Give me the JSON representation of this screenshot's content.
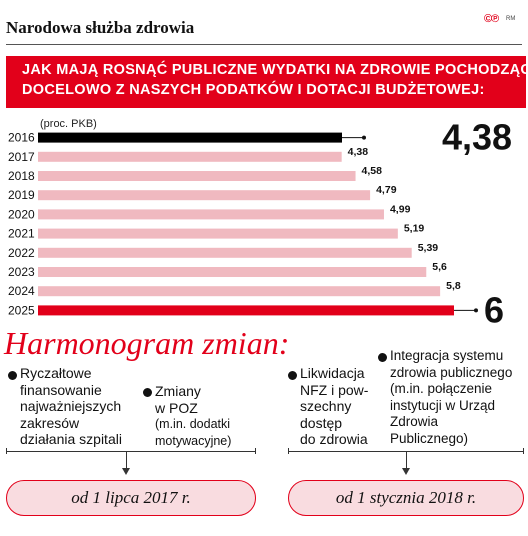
{
  "header": {
    "title": "Narodowa służba zdrowia",
    "logo": "©℗",
    "credit": "RM"
  },
  "banner": {
    "line1": "JAK MAJĄ ROSNĄĆ PUBLICZNE WYDATKI NA ZDROWIE POCHODZĄCE",
    "line2": "DOCELOWO Z NASZYCH PODATKÓW I DOTACJI BUDŻETOWEJ:"
  },
  "unit_label": "(proc. PKB)",
  "chart_data": {
    "type": "bar",
    "orientation": "horizontal",
    "categories": [
      "2016",
      "2017",
      "2018",
      "2019",
      "2020",
      "2021",
      "2022",
      "2023",
      "2024",
      "2025"
    ],
    "values": [
      4.38,
      4.38,
      4.58,
      4.79,
      4.99,
      5.19,
      5.39,
      5.6,
      5.8,
      6
    ],
    "value_labels": [
      "4,38",
      "4,38",
      "4,58",
      "4,79",
      "4,99",
      "5,19",
      "5,39",
      "5,6",
      "5,8",
      "6"
    ],
    "highlight": {
      "first": "4,38",
      "last": "6"
    },
    "colors": {
      "first": "#000000",
      "middle": "#f0b9c0",
      "last": "#e2001a"
    },
    "unit": "(proc. PKB)",
    "grid": false
  },
  "schedule": {
    "title": "Harmonogram zmian:",
    "left_items": [
      {
        "lines": [
          "Ryczałtowe",
          "finansowanie",
          "najważniejszych",
          "zakresów",
          "działania szpitali"
        ]
      },
      {
        "lines": [
          "Zmiany",
          "w POZ",
          "(m.in. dodatki",
          "motywacyjne)"
        ]
      }
    ],
    "right_items": [
      {
        "lines": [
          "Likwidacja",
          "NFZ i pow-",
          "szechny",
          "dostęp",
          "do zdrowia"
        ]
      },
      {
        "lines": [
          "Integracja systemu",
          "zdrowia publicznego",
          "(m.in. połączenie",
          "instytucji w Urząd",
          "Zdrowia",
          "Publicznego)"
        ]
      }
    ],
    "date_left": "od 1 lipca 2017 r.",
    "date_right": "od 1 stycznia 2018 r."
  }
}
